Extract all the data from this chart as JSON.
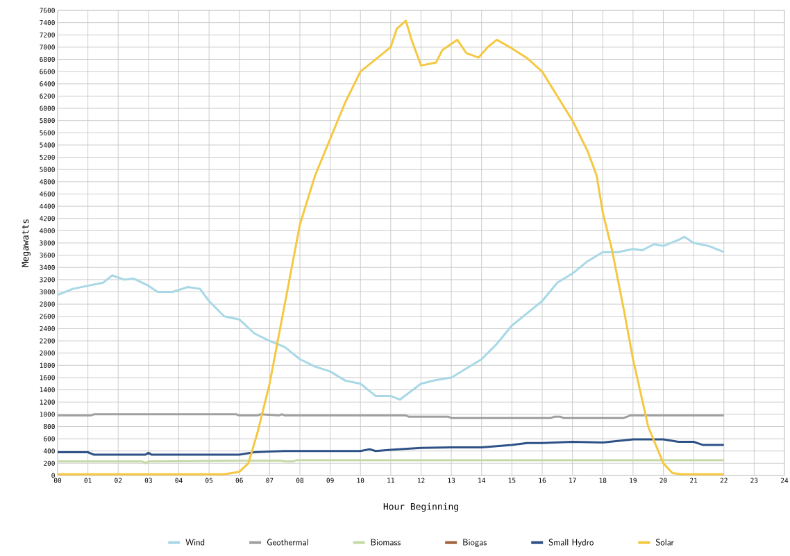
{
  "chart_data": {
    "type": "line",
    "xlabel": "Hour Beginning",
    "ylabel": "Megawatts",
    "xlim": [
      0,
      24
    ],
    "ylim": [
      0,
      7600
    ],
    "xticks": [
      {
        "value": 0,
        "label": "00"
      },
      {
        "value": 1,
        "label": "01"
      },
      {
        "value": 2,
        "label": "02"
      },
      {
        "value": 3,
        "label": "03"
      },
      {
        "value": 4,
        "label": "04"
      },
      {
        "value": 5,
        "label": "05"
      },
      {
        "value": 6,
        "label": "06"
      },
      {
        "value": 7,
        "label": "07"
      },
      {
        "value": 8,
        "label": "08"
      },
      {
        "value": 9,
        "label": "09"
      },
      10,
      11,
      12,
      13,
      14,
      15,
      16,
      17,
      18,
      19,
      20,
      21,
      22,
      23,
      24
    ],
    "yticks": [
      0,
      200,
      400,
      600,
      800,
      1000,
      1200,
      1400,
      1600,
      1800,
      2000,
      2200,
      2400,
      2600,
      2800,
      3000,
      3200,
      3400,
      3600,
      3800,
      4000,
      4200,
      4400,
      4600,
      4800,
      5000,
      5200,
      5400,
      5600,
      5800,
      6000,
      6200,
      6400,
      6600,
      6800,
      7000,
      7200,
      7400,
      7600
    ],
    "grid": true,
    "legend": "bottom",
    "marker": "none",
    "line_style": "solid",
    "series": [
      {
        "name": "Wind",
        "color": "#a8d8e6",
        "x": [
          0,
          0.5,
          1,
          1.5,
          1.8,
          2.2,
          2.5,
          3,
          3.3,
          3.8,
          4.3,
          4.7,
          5,
          5.5,
          6,
          6.5,
          7,
          7.5,
          8,
          8.5,
          9,
          9.5,
          10,
          10.5,
          11,
          11.3,
          12,
          12.5,
          13,
          13.5,
          14,
          14.5,
          15,
          15.5,
          16,
          16.5,
          17,
          17.5,
          18,
          18.5,
          19,
          19.3,
          19.7,
          20,
          20.5,
          20.7,
          21,
          21.5,
          22
        ],
        "values": [
          2950,
          3050,
          3100,
          3150,
          3270,
          3200,
          3220,
          3100,
          3000,
          3000,
          3080,
          3050,
          2850,
          2600,
          2550,
          2320,
          2200,
          2100,
          1900,
          1780,
          1700,
          1550,
          1500,
          1300,
          1300,
          1240,
          1500,
          1560,
          1600,
          1750,
          1900,
          2150,
          2450,
          2650,
          2850,
          3150,
          3300,
          3500,
          3650,
          3650,
          3700,
          3680,
          3780,
          3750,
          3850,
          3900,
          3800,
          3750,
          3650
        ]
      },
      {
        "name": "Geothermal",
        "color": "#a0a0a0",
        "x": [
          0,
          1.1,
          1.2,
          5.9,
          6,
          6.6,
          6.7,
          7.3,
          7.4,
          7.5,
          11.5,
          11.6,
          12.9,
          13,
          16.3,
          16.4,
          16.6,
          16.7,
          18.7,
          18.9,
          22
        ],
        "values": [
          980,
          980,
          1000,
          1000,
          980,
          980,
          1000,
          980,
          1000,
          980,
          980,
          960,
          960,
          940,
          940,
          960,
          960,
          940,
          940,
          980,
          980
        ]
      },
      {
        "name": "Biomass",
        "color": "#c5d9a8",
        "x": [
          0,
          2.8,
          2.9,
          3.0,
          6,
          7.4,
          7.5,
          7.8,
          7.9,
          22
        ],
        "values": [
          230,
          230,
          200,
          230,
          240,
          240,
          230,
          230,
          250,
          250
        ]
      },
      {
        "name": "Biogas",
        "color": "#a0623a"
      },
      {
        "name": "Small Hydro",
        "color": "#2e5286",
        "x": [
          0,
          1,
          1.2,
          2.9,
          3,
          3.1,
          6,
          6.5,
          7,
          7.5,
          10,
          10.3,
          10.5,
          11,
          12,
          13,
          14,
          14.5,
          15,
          15.5,
          16,
          17,
          18,
          19,
          20,
          20.5,
          21,
          21.3,
          22
        ],
        "values": [
          380,
          380,
          340,
          340,
          370,
          340,
          340,
          380,
          390,
          400,
          400,
          430,
          400,
          420,
          450,
          460,
          460,
          480,
          500,
          530,
          530,
          550,
          540,
          590,
          590,
          550,
          550,
          500,
          500
        ]
      },
      {
        "name": "Solar",
        "color": "#f5c842",
        "x": [
          0,
          5.5,
          6,
          6.3,
          6.6,
          7,
          7.5,
          8,
          8.5,
          9,
          9.5,
          10,
          10.5,
          11,
          11.2,
          11.5,
          11.7,
          12,
          12.5,
          12.7,
          13.2,
          13.5,
          13.9,
          14.2,
          14.5,
          15,
          15.5,
          16,
          16.5,
          17,
          17.5,
          17.8,
          18,
          18.3,
          18.7,
          19,
          19.5,
          20,
          20.3,
          20.6,
          22
        ],
        "values": [
          20,
          20,
          60,
          200,
          700,
          1500,
          2800,
          4100,
          4900,
          5500,
          6100,
          6600,
          6800,
          7000,
          7300,
          7430,
          7100,
          6700,
          6750,
          6950,
          7120,
          6900,
          6830,
          7000,
          7120,
          6980,
          6820,
          6600,
          6200,
          5800,
          5300,
          4900,
          4300,
          3700,
          2700,
          1900,
          800,
          200,
          40,
          20,
          20
        ]
      }
    ]
  }
}
